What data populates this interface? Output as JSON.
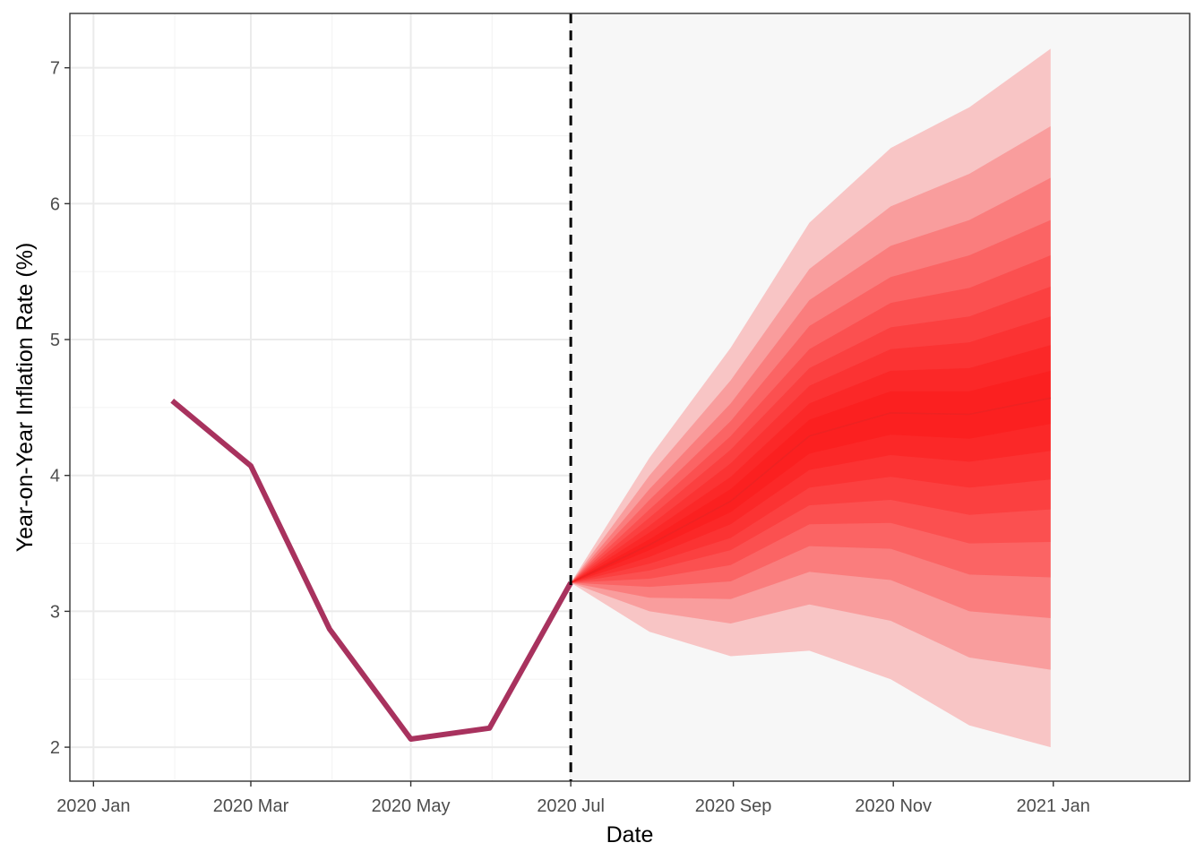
{
  "chart_data": {
    "type": "area",
    "title": "",
    "xlabel": "Date",
    "ylabel": "Year-on-Year Inflation Rate (%)",
    "x_tick_labels": [
      "2020 Jan",
      "2020 Mar",
      "2020 May",
      "2020 Jul",
      "2020 Sep",
      "2020 Nov",
      "2021 Jan"
    ],
    "y_tick_labels": [
      "2",
      "3",
      "4",
      "5",
      "6",
      "7"
    ],
    "ylim": [
      1.75,
      7.4
    ],
    "xlim": [
      "2019-12-23",
      "2021-02-22"
    ],
    "grid": true,
    "forecast_start": "2020-07-01",
    "forecast_start_line": "dashed",
    "forecast_region_shaded": true,
    "colors": {
      "history_line": "#a8325e",
      "forecast_median": "#ee2222",
      "fan_base": "#ff0000",
      "forecast_background": "#f7f7f7",
      "vline": "#000000",
      "grid_major": "#ebebeb",
      "grid_minor": "#f3f3f3"
    },
    "history": {
      "x": [
        "2020-01-31",
        "2020-03-01",
        "2020-03-31",
        "2020-05-01",
        "2020-05-31",
        "2020-07-01"
      ],
      "values": [
        4.55,
        4.07,
        2.87,
        2.06,
        2.14,
        3.21
      ]
    },
    "forecast": {
      "x": [
        "2020-07-01",
        "2020-07-31",
        "2020-08-31",
        "2020-09-30",
        "2020-10-31",
        "2020-11-30",
        "2020-12-31"
      ],
      "median": [
        3.21,
        3.49,
        3.81,
        4.29,
        4.46,
        4.45,
        4.57
      ],
      "bands": [
        {
          "level": 0.9,
          "lower": [
            3.21,
            2.85,
            2.67,
            2.71,
            2.5,
            2.16,
            2.0
          ],
          "upper": [
            3.21,
            4.13,
            4.94,
            5.86,
            6.41,
            6.71,
            7.14
          ]
        },
        {
          "level": 0.8,
          "lower": [
            3.21,
            3.0,
            2.91,
            3.05,
            2.93,
            2.66,
            2.57
          ],
          "upper": [
            3.21,
            4.0,
            4.7,
            5.52,
            5.98,
            6.22,
            6.57
          ]
        },
        {
          "level": 0.7,
          "lower": [
            3.21,
            3.1,
            3.09,
            3.29,
            3.23,
            3.0,
            2.95
          ],
          "upper": [
            3.21,
            3.9,
            4.53,
            5.29,
            5.69,
            5.88,
            6.19
          ]
        },
        {
          "level": 0.6,
          "lower": [
            3.21,
            3.18,
            3.22,
            3.48,
            3.46,
            3.27,
            3.25
          ],
          "upper": [
            3.21,
            3.82,
            4.4,
            5.1,
            5.46,
            5.62,
            5.88
          ]
        },
        {
          "level": 0.5,
          "lower": [
            3.21,
            3.24,
            3.34,
            3.64,
            3.65,
            3.5,
            3.51
          ],
          "upper": [
            3.21,
            3.75,
            4.29,
            4.93,
            5.27,
            5.38,
            5.62
          ]
        },
        {
          "level": 0.4,
          "lower": [
            3.21,
            3.3,
            3.45,
            3.78,
            3.82,
            3.71,
            3.75
          ],
          "upper": [
            3.21,
            3.69,
            4.19,
            4.79,
            5.09,
            5.17,
            5.39
          ]
        },
        {
          "level": 0.3,
          "lower": [
            3.21,
            3.35,
            3.54,
            3.91,
            3.99,
            3.91,
            3.97
          ],
          "upper": [
            3.21,
            3.63,
            4.09,
            4.66,
            4.93,
            4.98,
            5.17
          ]
        },
        {
          "level": 0.2,
          "lower": [
            3.21,
            3.4,
            3.64,
            4.04,
            4.15,
            4.1,
            4.18
          ],
          "upper": [
            3.21,
            3.58,
            3.99,
            4.53,
            4.77,
            4.79,
            4.96
          ]
        },
        {
          "level": 0.1,
          "lower": [
            3.21,
            3.45,
            3.73,
            4.16,
            4.3,
            4.27,
            4.38
          ],
          "upper": [
            3.21,
            3.53,
            3.9,
            4.41,
            4.62,
            4.62,
            4.77
          ]
        }
      ]
    }
  }
}
